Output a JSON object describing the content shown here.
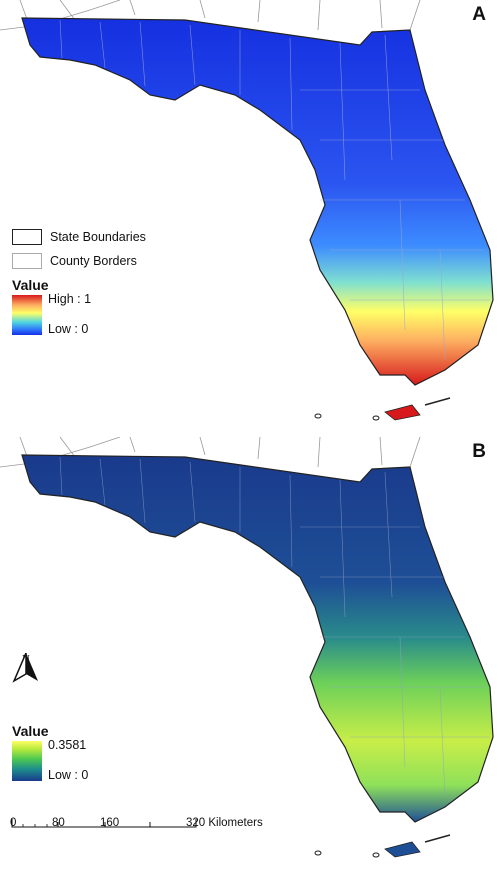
{
  "panel_a": {
    "letter": "A",
    "legend": {
      "state_boundaries": "State Boundaries",
      "county_borders": "County Borders",
      "value_title": "Value",
      "high_label": "High : 1",
      "low_label": "Low : 0"
    },
    "colors": {
      "low": "#1530e0",
      "mid": "#ffff66",
      "high": "#d7191c"
    }
  },
  "panel_b": {
    "letter": "B",
    "north_label": "N",
    "legend": {
      "value_title": "Value",
      "high_label": "0.3581",
      "low_label": "Low : 0"
    },
    "scale": {
      "ticks": [
        "0",
        "80",
        "160",
        "320 Kilometers"
      ]
    },
    "colors": {
      "low": "#1a3a8c",
      "mid": "#4cc850",
      "high": "#ffff66"
    }
  }
}
